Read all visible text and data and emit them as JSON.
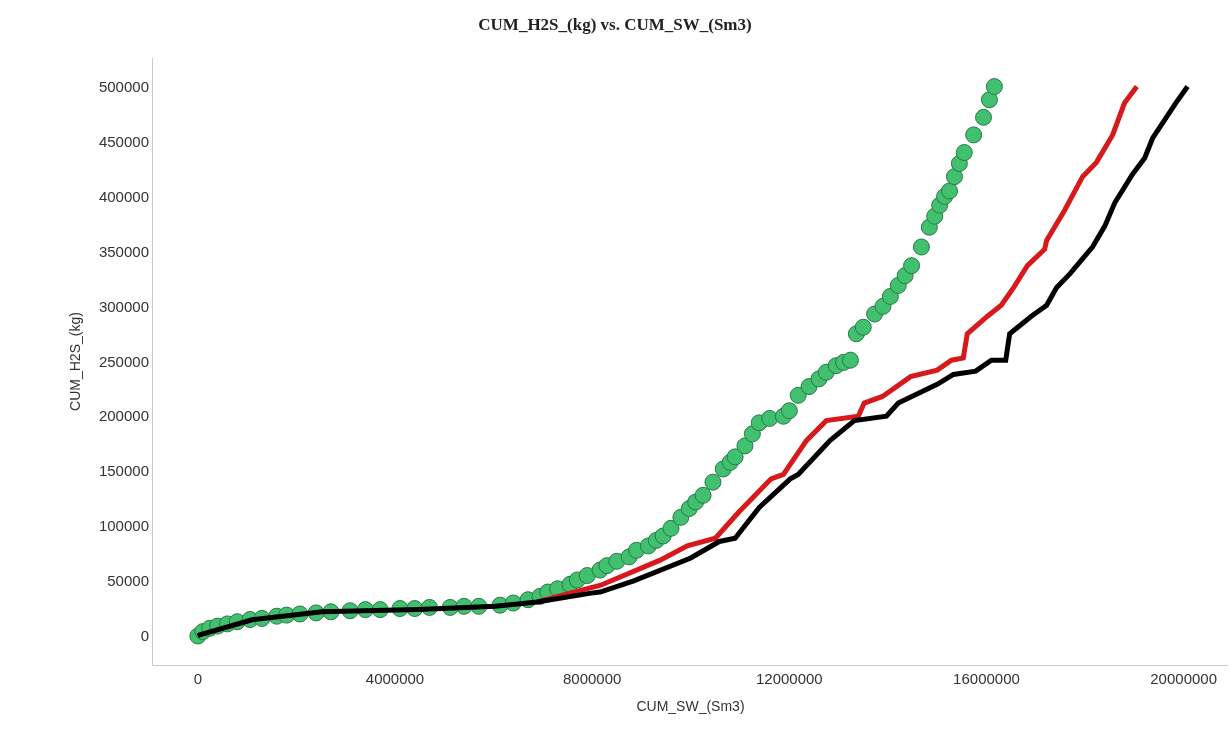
{
  "chart_data": {
    "type": "line",
    "title": "CUM_H2S_(kg) vs. CUM_SW_(Sm3)",
    "xlabel": "CUM_SW_(Sm3)",
    "ylabel": "CUM_H2S_(kg)",
    "xlim": [
      -910000,
      20900000
    ],
    "ylim": [
      -26400,
      526000
    ],
    "xticks": [
      0,
      4000000,
      8000000,
      12000000,
      16000000,
      20000000
    ],
    "yticks": [
      0,
      50000,
      100000,
      150000,
      200000,
      250000,
      300000,
      350000,
      400000,
      450000,
      500000
    ],
    "series": [
      {
        "type": "scatter",
        "marker": "circle",
        "color": "#41c070",
        "x": [
          0,
          100000,
          240000,
          400000,
          600000,
          800000,
          1060000,
          1300000,
          1600000,
          1800000,
          2070000,
          2400000,
          2700000,
          3090000,
          3400000,
          3700000,
          4100000,
          4400000,
          4700000,
          5120000,
          5400000,
          5700000,
          6130000,
          6400000,
          6700000,
          6940000,
          7100000,
          7300000,
          7550000,
          7700000,
          7900000,
          8160000,
          8300000,
          8500000,
          8750000,
          8900000,
          9140000,
          9300000,
          9440000,
          9600000,
          9800000,
          9970000,
          10100000,
          10250000,
          10450000,
          10660000,
          10800000,
          10900000,
          11100000,
          11250000,
          11390000,
          11600000,
          11880000,
          12000000,
          12180000,
          12400000,
          12600000,
          12750000,
          12950000,
          13100000,
          13240000,
          13360000,
          13500000,
          13730000,
          13900000,
          14050000,
          14210000,
          14350000,
          14480000,
          14680000,
          14840000,
          14950000,
          15050000,
          15150000,
          15250000,
          15350000,
          15450000,
          15550000,
          15740000,
          15940000,
          16060000,
          16160000
        ],
        "values": [
          0,
          4000,
          7000,
          9000,
          11000,
          13000,
          15000,
          16000,
          18000,
          19000,
          20000,
          21000,
          22000,
          23000,
          24000,
          24000,
          25000,
          25000,
          26000,
          26000,
          27000,
          27000,
          28000,
          30000,
          33000,
          36000,
          40000,
          43000,
          47000,
          51000,
          55000,
          60000,
          64000,
          68000,
          72000,
          78000,
          82000,
          87000,
          91000,
          98000,
          108000,
          116000,
          122000,
          128000,
          140000,
          152000,
          158000,
          163000,
          173000,
          184000,
          194000,
          198000,
          200000,
          205000,
          219000,
          227000,
          234000,
          240000,
          246000,
          249000,
          251000,
          275000,
          281000,
          293000,
          300000,
          309000,
          319000,
          328000,
          337000,
          354000,
          372000,
          382000,
          392000,
          400000,
          405000,
          418000,
          430000,
          440000,
          456000,
          472000,
          488000,
          500000
        ]
      },
      {
        "color": "#d7191c",
        "x": [
          6880000,
          7980000,
          8160000,
          9380000,
          9930000,
          10500000,
          10980000,
          11630000,
          11880000,
          12350000,
          12750000,
          13400000,
          13520000,
          13890000,
          14460000,
          15000000,
          15290000,
          15530000,
          15610000,
          16020000,
          16300000,
          16550000,
          16830000,
          17180000,
          17220000,
          17580000,
          17950000,
          18230000,
          18560000,
          18800000,
          19050000
        ],
        "values": [
          31000,
          44000,
          46000,
          69000,
          82000,
          89000,
          113000,
          143000,
          147000,
          178000,
          196000,
          200000,
          212000,
          218000,
          236000,
          242000,
          251000,
          253000,
          275000,
          291000,
          301000,
          317000,
          337000,
          352000,
          360000,
          387000,
          418000,
          431000,
          456000,
          485000,
          500000
        ]
      },
      {
        "color": "#000000",
        "x": [
          0,
          40000,
          1120000,
          2520000,
          4470000,
          6030000,
          6880000,
          7980000,
          8160000,
          8830000,
          10000000,
          10580000,
          10900000,
          11390000,
          12020000,
          12180000,
          12830000,
          13320000,
          13970000,
          14210000,
          15000000,
          15330000,
          15780000,
          16100000,
          16390000,
          16470000,
          16910000,
          17220000,
          17420000,
          17700000,
          18150000,
          18400000,
          18600000,
          18960000,
          19210000,
          19370000,
          19840000,
          20080000
        ],
        "values": [
          0,
          1000,
          15000,
          22000,
          24000,
          27000,
          31000,
          39000,
          40000,
          50000,
          71000,
          86000,
          89000,
          117000,
          143000,
          147000,
          178000,
          196000,
          200000,
          212000,
          229000,
          238000,
          241000,
          251000,
          251000,
          275000,
          291000,
          301000,
          317000,
          330000,
          354000,
          373000,
          394000,
          420000,
          435000,
          453000,
          485000,
          500000
        ]
      }
    ]
  }
}
